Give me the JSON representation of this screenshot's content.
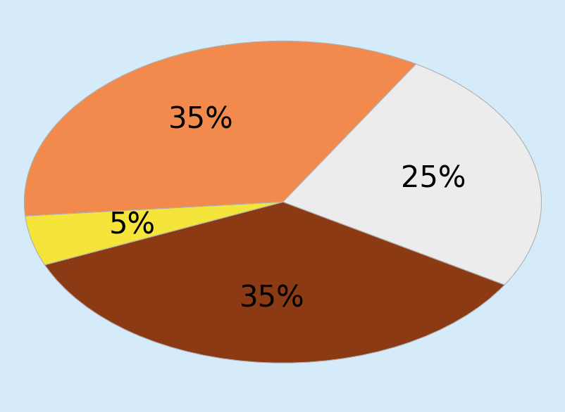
{
  "chart_data": {
    "type": "pie",
    "values": [
      35,
      25,
      35,
      5
    ],
    "value_labels": [
      "35%",
      "25%",
      "35%",
      "5%"
    ],
    "colors": [
      "#f28a4e",
      "#ececec",
      "#8c3a14",
      "#f5e43a"
    ],
    "data_labels": true
  }
}
